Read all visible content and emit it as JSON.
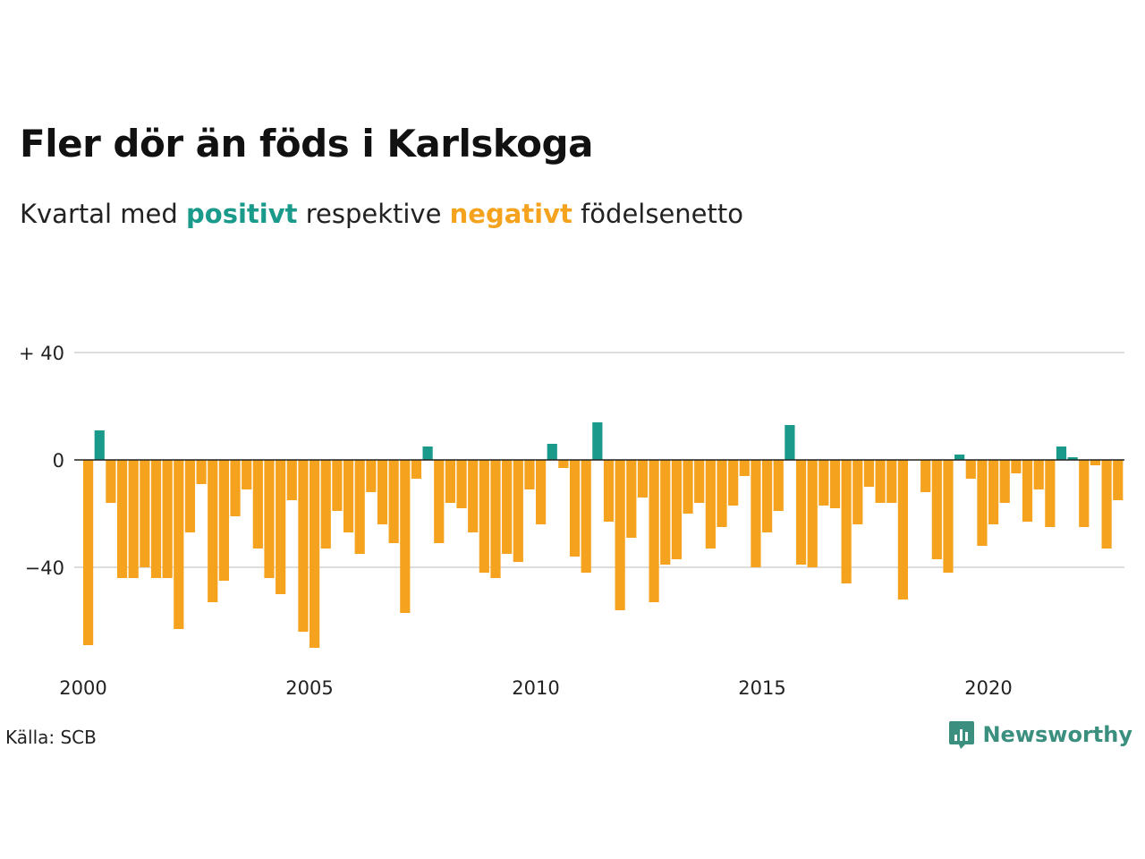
{
  "header": {
    "title": "Fler dör än föds i Karlskoga",
    "subtitle_prefix": "Kvartal med ",
    "subtitle_positive": "positivt",
    "subtitle_middle": " respektive ",
    "subtitle_negative": "negativt",
    "subtitle_suffix": " födelsenetto"
  },
  "footer": {
    "source": "Källa: SCB",
    "brand": "Newsworthy"
  },
  "colors": {
    "positive": "#1a9a8a",
    "negative": "#f5a31e",
    "brand": "#3a8f7f",
    "grid": "#dddddd",
    "zero_line": "#222222"
  },
  "chart_data": {
    "type": "bar",
    "title": "Fler dör än föds i Karlskoga",
    "subtitle": "Kvartal med positivt respektive negativt födelsenetto",
    "xlabel": "",
    "ylabel": "",
    "x_start": "2000 Q1",
    "quarters_per_year": 4,
    "ylim": [
      -70,
      45
    ],
    "y_ticks": [
      {
        "value": 40,
        "label": "+ 40"
      },
      {
        "value": 0,
        "label": "0"
      },
      {
        "value": -40,
        "label": "−40"
      }
    ],
    "x_ticks": [
      "2000",
      "2005",
      "2010",
      "2015",
      "2020"
    ],
    "grid": true,
    "values": [
      -69,
      11,
      -16,
      -44,
      -44,
      -40,
      -44,
      -44,
      -63,
      -27,
      -9,
      -53,
      -45,
      -21,
      -11,
      -33,
      -44,
      -50,
      -15,
      -64,
      -70,
      -33,
      -19,
      -27,
      -35,
      -12,
      -24,
      -31,
      -57,
      -7,
      5,
      -31,
      -16,
      -18,
      -27,
      -42,
      -44,
      -35,
      -38,
      -11,
      -24,
      6,
      -3,
      -36,
      -42,
      14,
      -23,
      -56,
      -29,
      -14,
      -53,
      -39,
      -37,
      -20,
      -16,
      -33,
      -25,
      -17,
      -6,
      -40,
      -27,
      -19,
      13,
      -39,
      -40,
      -17,
      -18,
      -46,
      -24,
      -10,
      -16,
      -16,
      -52,
      0,
      -12,
      -37,
      -42,
      2,
      -7,
      -32,
      -24,
      -16,
      -5,
      -23,
      -11,
      -25,
      5,
      1,
      -25,
      -2,
      -33,
      -15
    ]
  }
}
